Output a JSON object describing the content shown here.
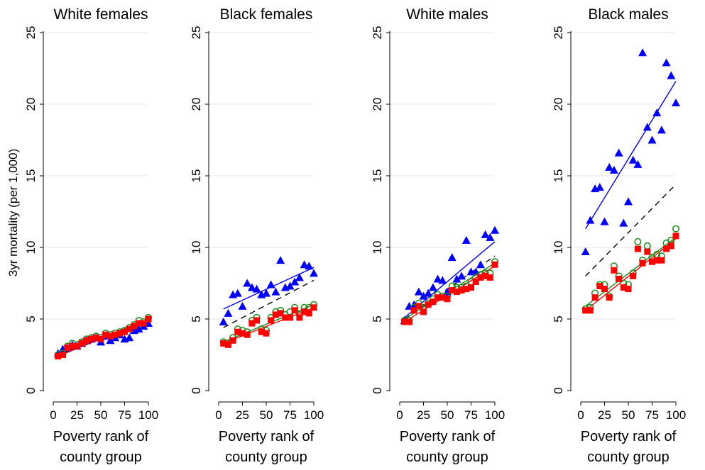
{
  "figure": {
    "ylabel": "3yr mortality (per 1,000)",
    "xlabel_line1": "Poverty rank of",
    "xlabel_line2": "county group"
  },
  "colors": {
    "triangle": "#0000ff",
    "circle": "#1a8a1a",
    "square": "#ff0000",
    "dashed": "#000000",
    "grid": "#e6e6e6"
  },
  "chart_data": [
    {
      "type": "scatter",
      "title": "White females",
      "xlabel": "Poverty rank of county group",
      "ylabel": "3yr mortality (per 1,000)",
      "xlim": [
        0,
        100
      ],
      "ylim": [
        0,
        25
      ],
      "xticks": [
        "0",
        "25",
        "50",
        "75",
        "100"
      ],
      "yticks": [
        "0",
        "5",
        "10",
        "15",
        "20",
        "25"
      ],
      "x": [
        5,
        10,
        15,
        20,
        25,
        30,
        35,
        40,
        45,
        50,
        55,
        60,
        65,
        70,
        75,
        80,
        85,
        90,
        95,
        100
      ],
      "series": [
        {
          "marker": "triangle",
          "values": [
            2.6,
            2.9,
            3.0,
            3.2,
            3.1,
            3.3,
            3.5,
            3.6,
            3.7,
            3.4,
            3.8,
            3.5,
            3.7,
            3.9,
            3.6,
            3.7,
            4.2,
            4.3,
            4.5,
            4.7
          ],
          "fit": [
            2.55,
            4.75
          ]
        },
        {
          "marker": "circle",
          "values": [
            2.5,
            2.6,
            3.1,
            3.3,
            3.2,
            3.4,
            3.6,
            3.7,
            3.8,
            3.7,
            4.0,
            3.9,
            4.0,
            4.1,
            4.2,
            4.4,
            4.6,
            4.9,
            4.8,
            5.1
          ],
          "fit": [
            2.45,
            5.0
          ]
        },
        {
          "marker": "square",
          "values": [
            2.4,
            2.5,
            3.0,
            3.1,
            3.1,
            3.3,
            3.5,
            3.6,
            3.7,
            3.6,
            3.9,
            3.8,
            3.9,
            4.0,
            4.1,
            4.3,
            4.5,
            4.7,
            4.7,
            5.0
          ],
          "fit": [
            2.4,
            4.95
          ]
        },
        {
          "marker": "dashed",
          "fit": [
            2.5,
            4.9
          ]
        }
      ]
    },
    {
      "type": "scatter",
      "title": "Black females",
      "xlabel": "Poverty rank of county group",
      "ylabel": "3yr mortality (per 1,000)",
      "xlim": [
        0,
        100
      ],
      "ylim": [
        0,
        25
      ],
      "xticks": [
        "0",
        "25",
        "50",
        "75",
        "100"
      ],
      "yticks": [
        "0",
        "5",
        "10",
        "15",
        "20",
        "25"
      ],
      "x": [
        5,
        10,
        15,
        20,
        25,
        30,
        35,
        40,
        45,
        50,
        55,
        60,
        65,
        70,
        75,
        80,
        85,
        90,
        95,
        100
      ],
      "series": [
        {
          "marker": "triangle",
          "values": [
            4.8,
            5.4,
            6.7,
            6.8,
            5.9,
            7.5,
            7.2,
            7.1,
            6.7,
            6.8,
            7.4,
            6.9,
            9.1,
            7.2,
            7.3,
            7.6,
            7.9,
            8.8,
            8.7,
            8.2
          ],
          "fit": [
            5.7,
            8.6
          ]
        },
        {
          "marker": "circle",
          "values": [
            3.4,
            3.3,
            3.7,
            4.3,
            4.2,
            4.1,
            4.9,
            5.1,
            4.3,
            4.2,
            5.1,
            5.5,
            5.6,
            5.3,
            5.5,
            5.8,
            5.3,
            5.8,
            5.8,
            6.0
          ],
          "fit": [
            3.4,
            6.0
          ]
        },
        {
          "marker": "square",
          "values": [
            3.3,
            3.2,
            3.5,
            4.1,
            4.0,
            3.9,
            4.7,
            4.9,
            4.1,
            4.0,
            4.9,
            5.3,
            5.4,
            5.1,
            5.1,
            5.6,
            5.1,
            5.5,
            5.4,
            5.8
          ],
          "fit": [
            3.3,
            5.8
          ]
        },
        {
          "marker": "dashed",
          "fit": [
            4.4,
            7.7
          ]
        }
      ]
    },
    {
      "type": "scatter",
      "title": "White males",
      "xlabel": "Poverty rank of county group",
      "ylabel": "3yr mortality (per 1,000)",
      "xlim": [
        0,
        100
      ],
      "ylim": [
        0,
        25
      ],
      "xticks": [
        "0",
        "25",
        "50",
        "75",
        "100"
      ],
      "yticks": [
        "0",
        "5",
        "10",
        "15",
        "20",
        "25"
      ],
      "x": [
        5,
        10,
        15,
        20,
        25,
        30,
        35,
        40,
        45,
        50,
        55,
        60,
        65,
        70,
        75,
        80,
        85,
        90,
        95,
        100
      ],
      "series": [
        {
          "marker": "triangle",
          "values": [
            4.9,
            5.9,
            6.0,
            6.9,
            6.6,
            6.8,
            7.2,
            7.8,
            7.7,
            6.9,
            9.3,
            7.8,
            8.0,
            10.5,
            8.3,
            8.3,
            8.8,
            10.9,
            10.7,
            11.2
          ],
          "fit": [
            5.1,
            10.4
          ]
        },
        {
          "marker": "circle",
          "values": [
            4.9,
            4.9,
            5.8,
            6.1,
            5.8,
            6.1,
            6.4,
            6.7,
            6.6,
            6.6,
            7.3,
            7.2,
            7.2,
            7.3,
            7.6,
            7.9,
            8.1,
            8.2,
            8.2,
            9.0
          ],
          "fit": [
            5.0,
            8.9
          ]
        },
        {
          "marker": "square",
          "values": [
            4.8,
            4.8,
            5.6,
            5.9,
            5.5,
            6.0,
            6.2,
            6.5,
            6.5,
            6.4,
            7.0,
            6.9,
            7.0,
            7.1,
            7.2,
            7.6,
            7.9,
            8.0,
            7.9,
            8.8
          ],
          "fit": [
            4.8,
            8.7
          ]
        },
        {
          "marker": "dashed",
          "fit": [
            5.0,
            9.4
          ]
        }
      ]
    },
    {
      "type": "scatter",
      "title": "Black males",
      "xlabel": "Poverty rank of county group",
      "ylabel": "3yr mortality (per 1,000)",
      "xlim": [
        0,
        100
      ],
      "ylim": [
        0,
        25
      ],
      "xticks": [
        "0",
        "25",
        "50",
        "75",
        "100"
      ],
      "yticks": [
        "0",
        "5",
        "10",
        "15",
        "20",
        "25"
      ],
      "x": [
        5,
        10,
        15,
        20,
        25,
        30,
        35,
        40,
        45,
        50,
        55,
        60,
        65,
        70,
        75,
        80,
        85,
        90,
        95,
        100
      ],
      "series": [
        {
          "marker": "triangle",
          "values": [
            9.7,
            11.9,
            14.1,
            14.2,
            11.8,
            15.6,
            15.4,
            16.6,
            11.7,
            13.2,
            16.1,
            15.8,
            23.6,
            18.4,
            17.5,
            19.4,
            18.2,
            22.9,
            22.0,
            20.1
          ],
          "fit": [
            11.3,
            21.6
          ]
        },
        {
          "marker": "circle",
          "values": [
            5.7,
            5.8,
            6.8,
            7.4,
            7.4,
            6.6,
            8.7,
            8.0,
            7.5,
            7.4,
            8.2,
            10.4,
            9.1,
            10.1,
            9.3,
            9.5,
            9.4,
            10.3,
            10.5,
            11.3
          ],
          "fit": [
            5.9,
            10.7
          ]
        },
        {
          "marker": "square",
          "values": [
            5.6,
            5.6,
            6.5,
            7.3,
            7.1,
            6.5,
            8.4,
            7.8,
            7.2,
            7.1,
            8.0,
            9.9,
            8.9,
            9.7,
            9.0,
            9.1,
            9.1,
            9.9,
            10.1,
            10.8
          ],
          "fit": [
            5.6,
            10.6
          ]
        },
        {
          "marker": "dashed",
          "fit": [
            8.0,
            14.4
          ]
        }
      ]
    }
  ]
}
